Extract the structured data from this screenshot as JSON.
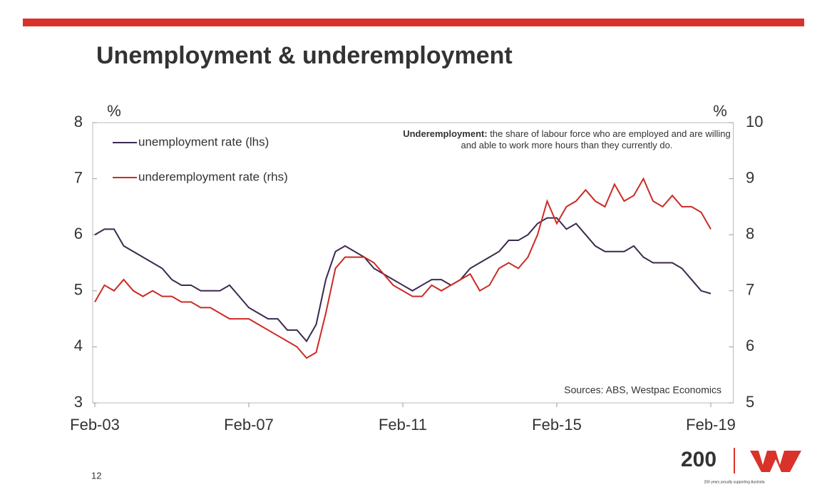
{
  "chart_data": {
    "type": "line",
    "title": "Unemployment & underemployment",
    "y_unit": "%",
    "y2_unit": "%",
    "annotation_bold": "Underemployment:",
    "annotation": "the share of labour force who are employed and are willing and able to work more hours than they currently do.",
    "source": "Sources: ABS, Westpac Economics",
    "legend": "upper left",
    "x": [
      "Feb-03",
      "May-03",
      "Aug-03",
      "Nov-03",
      "Feb-04",
      "May-04",
      "Aug-04",
      "Nov-04",
      "Feb-05",
      "May-05",
      "Aug-05",
      "Nov-05",
      "Feb-06",
      "May-06",
      "Aug-06",
      "Nov-06",
      "Feb-07",
      "May-07",
      "Aug-07",
      "Nov-07",
      "Feb-08",
      "May-08",
      "Aug-08",
      "Nov-08",
      "Feb-09",
      "May-09",
      "Aug-09",
      "Nov-09",
      "Feb-10",
      "May-10",
      "Aug-10",
      "Nov-10",
      "Feb-11",
      "May-11",
      "Aug-11",
      "Nov-11",
      "Feb-12",
      "May-12",
      "Aug-12",
      "Nov-12",
      "Feb-13",
      "May-13",
      "Aug-13",
      "Nov-13",
      "Feb-14",
      "May-14",
      "Aug-14",
      "Nov-14",
      "Feb-15",
      "May-15",
      "Aug-15",
      "Nov-15",
      "Feb-16",
      "May-16",
      "Aug-16",
      "Nov-16",
      "Feb-17",
      "May-17",
      "Aug-17",
      "Nov-17",
      "Feb-18",
      "May-18",
      "Aug-18",
      "Nov-18",
      "Feb-19"
    ],
    "series": [
      {
        "name": "unemployment rate (lhs)",
        "color": "#3b2a4e",
        "values": [
          6.0,
          6.1,
          6.1,
          5.8,
          5.7,
          5.6,
          5.5,
          5.4,
          5.2,
          5.1,
          5.1,
          5.0,
          5.0,
          5.0,
          5.1,
          4.9,
          4.7,
          4.6,
          4.5,
          4.5,
          4.3,
          4.3,
          4.1,
          4.4,
          5.2,
          5.7,
          5.8,
          5.7,
          5.6,
          5.4,
          5.3,
          5.2,
          5.1,
          5.0,
          5.1,
          5.2,
          5.2,
          5.1,
          5.2,
          5.4,
          5.5,
          5.6,
          5.7,
          5.9,
          5.9,
          6.0,
          6.2,
          6.3,
          6.3,
          6.1,
          6.2,
          6.0,
          5.8,
          5.7,
          5.7,
          5.7,
          5.8,
          5.6,
          5.5,
          5.5,
          5.5,
          5.4,
          5.2,
          5.0,
          4.95
        ]
      },
      {
        "name": "underemployment rate (rhs)",
        "color": "#cc2a24",
        "axis": "y2",
        "values": [
          6.8,
          7.1,
          7.0,
          7.2,
          7.0,
          6.9,
          7.0,
          6.9,
          6.9,
          6.8,
          6.8,
          6.7,
          6.7,
          6.6,
          6.5,
          6.5,
          6.5,
          6.4,
          6.3,
          6.2,
          6.1,
          6.0,
          5.8,
          5.9,
          6.6,
          7.4,
          7.6,
          7.6,
          7.6,
          7.5,
          7.3,
          7.1,
          7.0,
          6.9,
          6.9,
          7.1,
          7.0,
          7.1,
          7.2,
          7.3,
          7.0,
          7.1,
          7.4,
          7.5,
          7.4,
          7.6,
          8.0,
          8.6,
          8.2,
          8.5,
          8.6,
          8.8,
          8.6,
          8.5,
          8.9,
          8.6,
          8.7,
          9.0,
          8.6,
          8.5,
          8.7,
          8.5,
          8.5,
          8.4,
          8.1
        ]
      }
    ],
    "xlim": [
      "Feb-03",
      "Sep-19"
    ],
    "xticks": [
      "Feb-03",
      "Feb-07",
      "Feb-11",
      "Feb-15",
      "Feb-19"
    ],
    "ylim": [
      3,
      8
    ],
    "yticks": [
      3,
      4,
      5,
      6,
      7,
      8
    ],
    "y2lim": [
      5,
      10
    ],
    "y2ticks": [
      5,
      6,
      7,
      8,
      9,
      10
    ]
  },
  "page_number": "12",
  "logo": {
    "text": "200",
    "tagline": "200 years proudly supporting Australia"
  }
}
